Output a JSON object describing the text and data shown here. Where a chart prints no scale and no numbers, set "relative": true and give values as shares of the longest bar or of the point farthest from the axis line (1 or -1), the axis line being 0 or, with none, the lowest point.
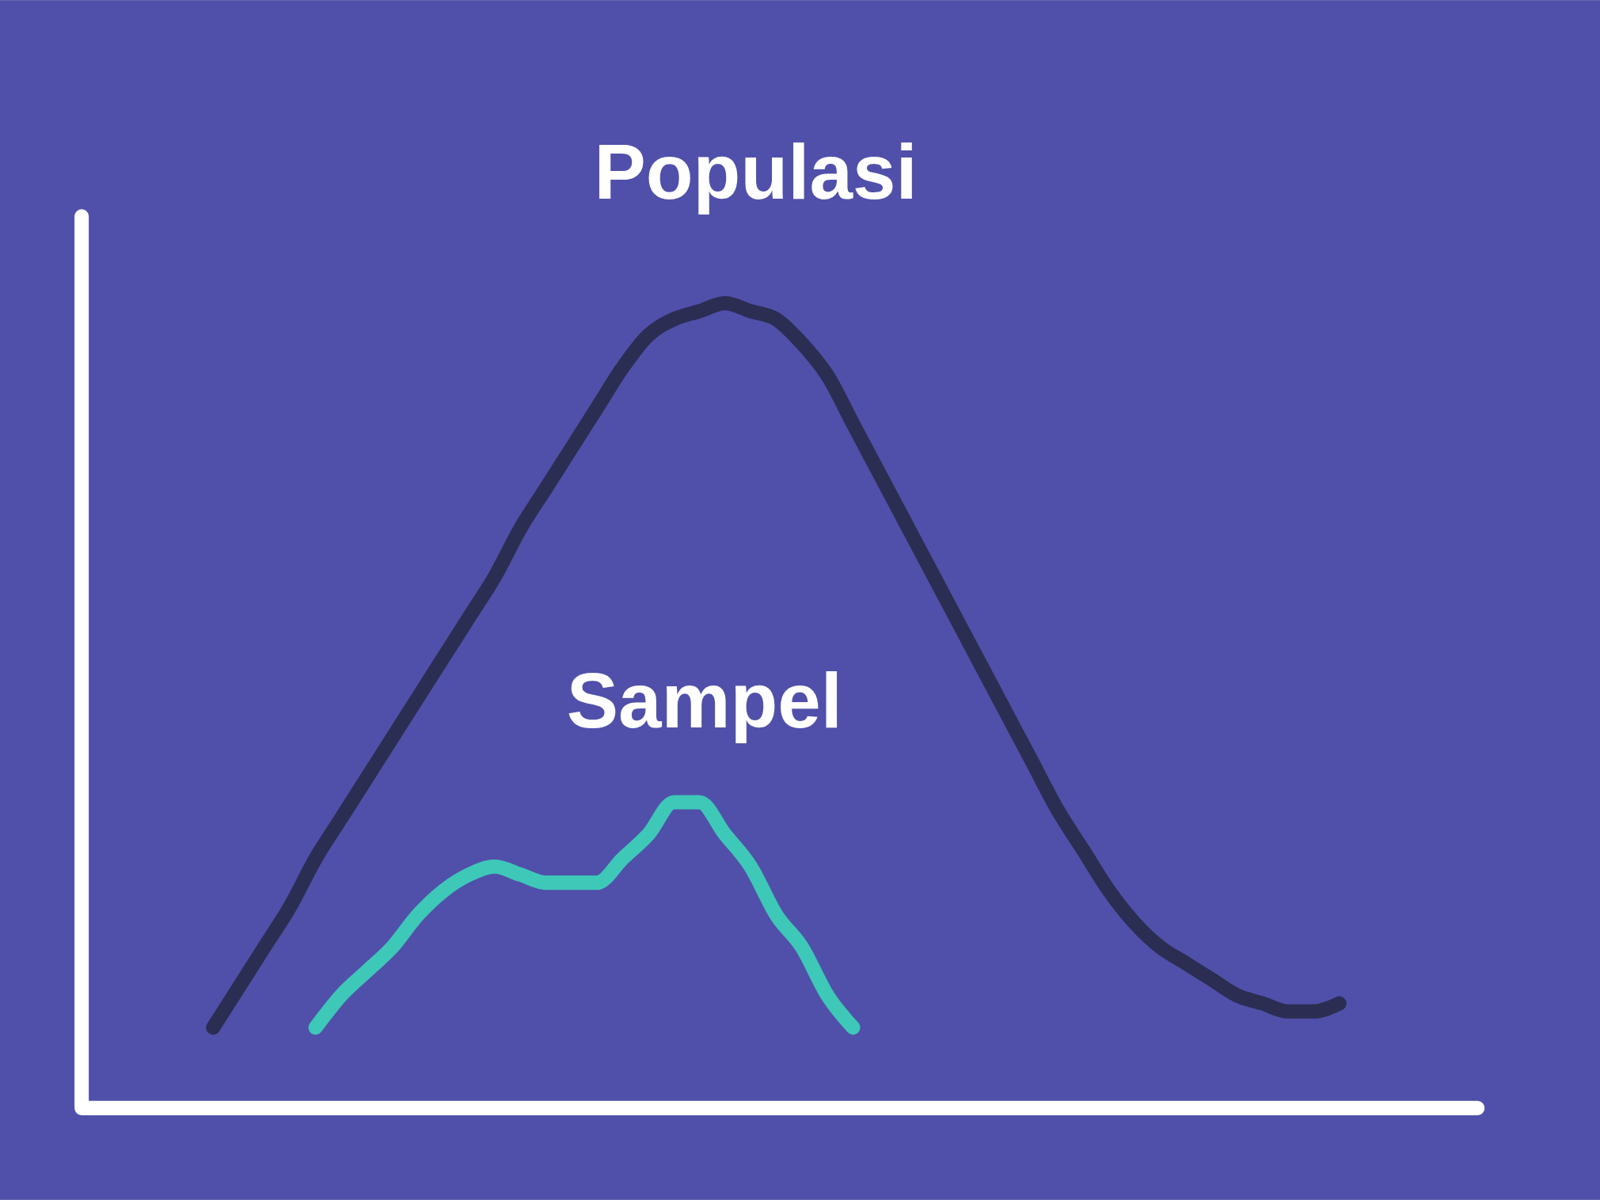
{
  "chart_data": {
    "type": "line",
    "relative": true,
    "legend": false,
    "marker": "none",
    "line_style": "solid",
    "categories": [
      null,
      null,
      null,
      null,
      null,
      null,
      null,
      null,
      null,
      null,
      null,
      null,
      null,
      null,
      null,
      null,
      null,
      null,
      null,
      null,
      null,
      null,
      null,
      null,
      null,
      null,
      null,
      null,
      null,
      null,
      null,
      null,
      null,
      null,
      null,
      null,
      null,
      null,
      null,
      null,
      null,
      null,
      null,
      null,
      null
    ],
    "series": [
      {
        "name": "Populasi",
        "color": "#2b2d52",
        "values": [
          0.1,
          0.15,
          0.2,
          0.25,
          0.31,
          0.36,
          0.41,
          0.46,
          0.51,
          0.56,
          0.61,
          0.66,
          0.72,
          0.77,
          0.82,
          0.87,
          0.92,
          0.96,
          0.98,
          0.99,
          1,
          0.99,
          0.98,
          0.95,
          0.91,
          0.85,
          0.79,
          0.73,
          0.67,
          0.61,
          0.55,
          0.49,
          0.43,
          0.37,
          0.32,
          0.27,
          0.23,
          0.2,
          0.18,
          0.16,
          0.14,
          0.13,
          0.12,
          0.12,
          0.13
        ]
      },
      {
        "name": "Sampel",
        "color": "#3ec8b8",
        "values": [
          null,
          null,
          null,
          null,
          0.1,
          0.14,
          0.17,
          0.2,
          0.24,
          0.27,
          0.29,
          0.3,
          0.29,
          0.28,
          0.28,
          0.28,
          0.31,
          0.34,
          0.38,
          0.38,
          0.34,
          0.3,
          0.24,
          0.2,
          0.14,
          0.1,
          null,
          null,
          null,
          null,
          null,
          null,
          null,
          null,
          null,
          null,
          null,
          null,
          null,
          null,
          null,
          null,
          null,
          null,
          null
        ]
      }
    ]
  }
}
